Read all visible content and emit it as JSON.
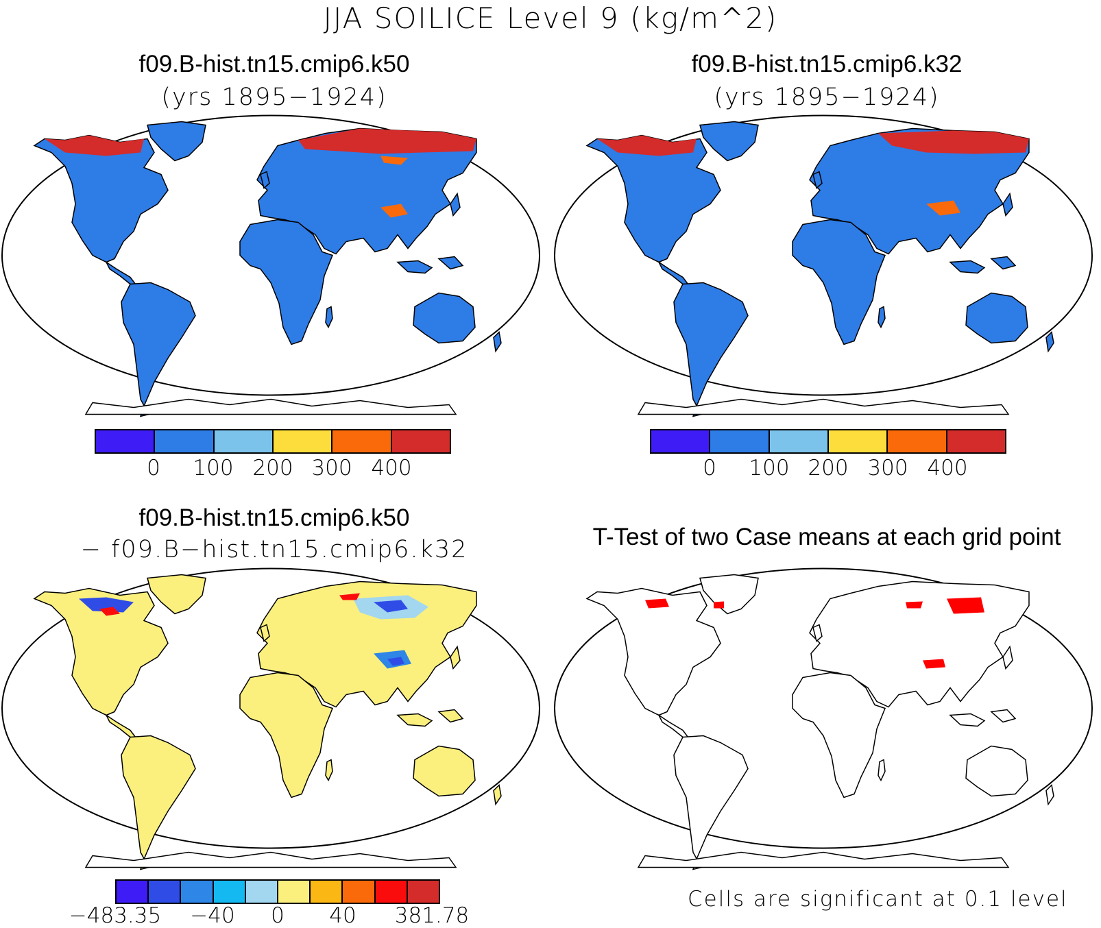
{
  "title": "JJA SOILICE Level 9 (kg/m^2)",
  "panels": [
    {
      "id": "p1",
      "case": "f09.B-hist.tn15.cmip6.k50",
      "subtitle": "(yrs 1895−1924)"
    },
    {
      "id": "p2",
      "case": "f09.B-hist.tn15.cmip6.k32",
      "subtitle": "(yrs 1895−1924)"
    },
    {
      "id": "p3",
      "case": "f09.B-hist.tn15.cmip6.k50",
      "subtitle": "− f09.B−hist.tn15.cmip6.k32"
    },
    {
      "id": "p4",
      "case": "T-Test of two Case means at each grid point"
    }
  ],
  "colorbar_top": {
    "colors": [
      "#3d1cf5",
      "#2e7ce6",
      "#7cc3ec",
      "#fcdd3c",
      "#fb6a0a",
      "#d42b2b"
    ],
    "labels": [
      "0",
      "100",
      "200",
      "300",
      "400"
    ]
  },
  "colorbar_diff": {
    "colors": [
      "#3d1cf5",
      "#2f4de6",
      "#2e86e6",
      "#15b9f2",
      "#a3d6ef",
      "#fbf07e",
      "#fbb714",
      "#fb6a0a",
      "#fb0c0c",
      "#d42b2b"
    ],
    "labels": [
      "−483.35",
      "−40",
      "0",
      "40",
      "381.78"
    ]
  },
  "significance_note": "Cells are significant at 0.1 level",
  "colors": {
    "land_low": "#2e7ce6",
    "land_high": "#d42b2b",
    "land_mid": "#fb6a0a",
    "diff_land": "#fbf07e",
    "diff_neg": "#2f4de6",
    "diff_pos": "#fb0c0c",
    "significant": "#ff0000"
  }
}
